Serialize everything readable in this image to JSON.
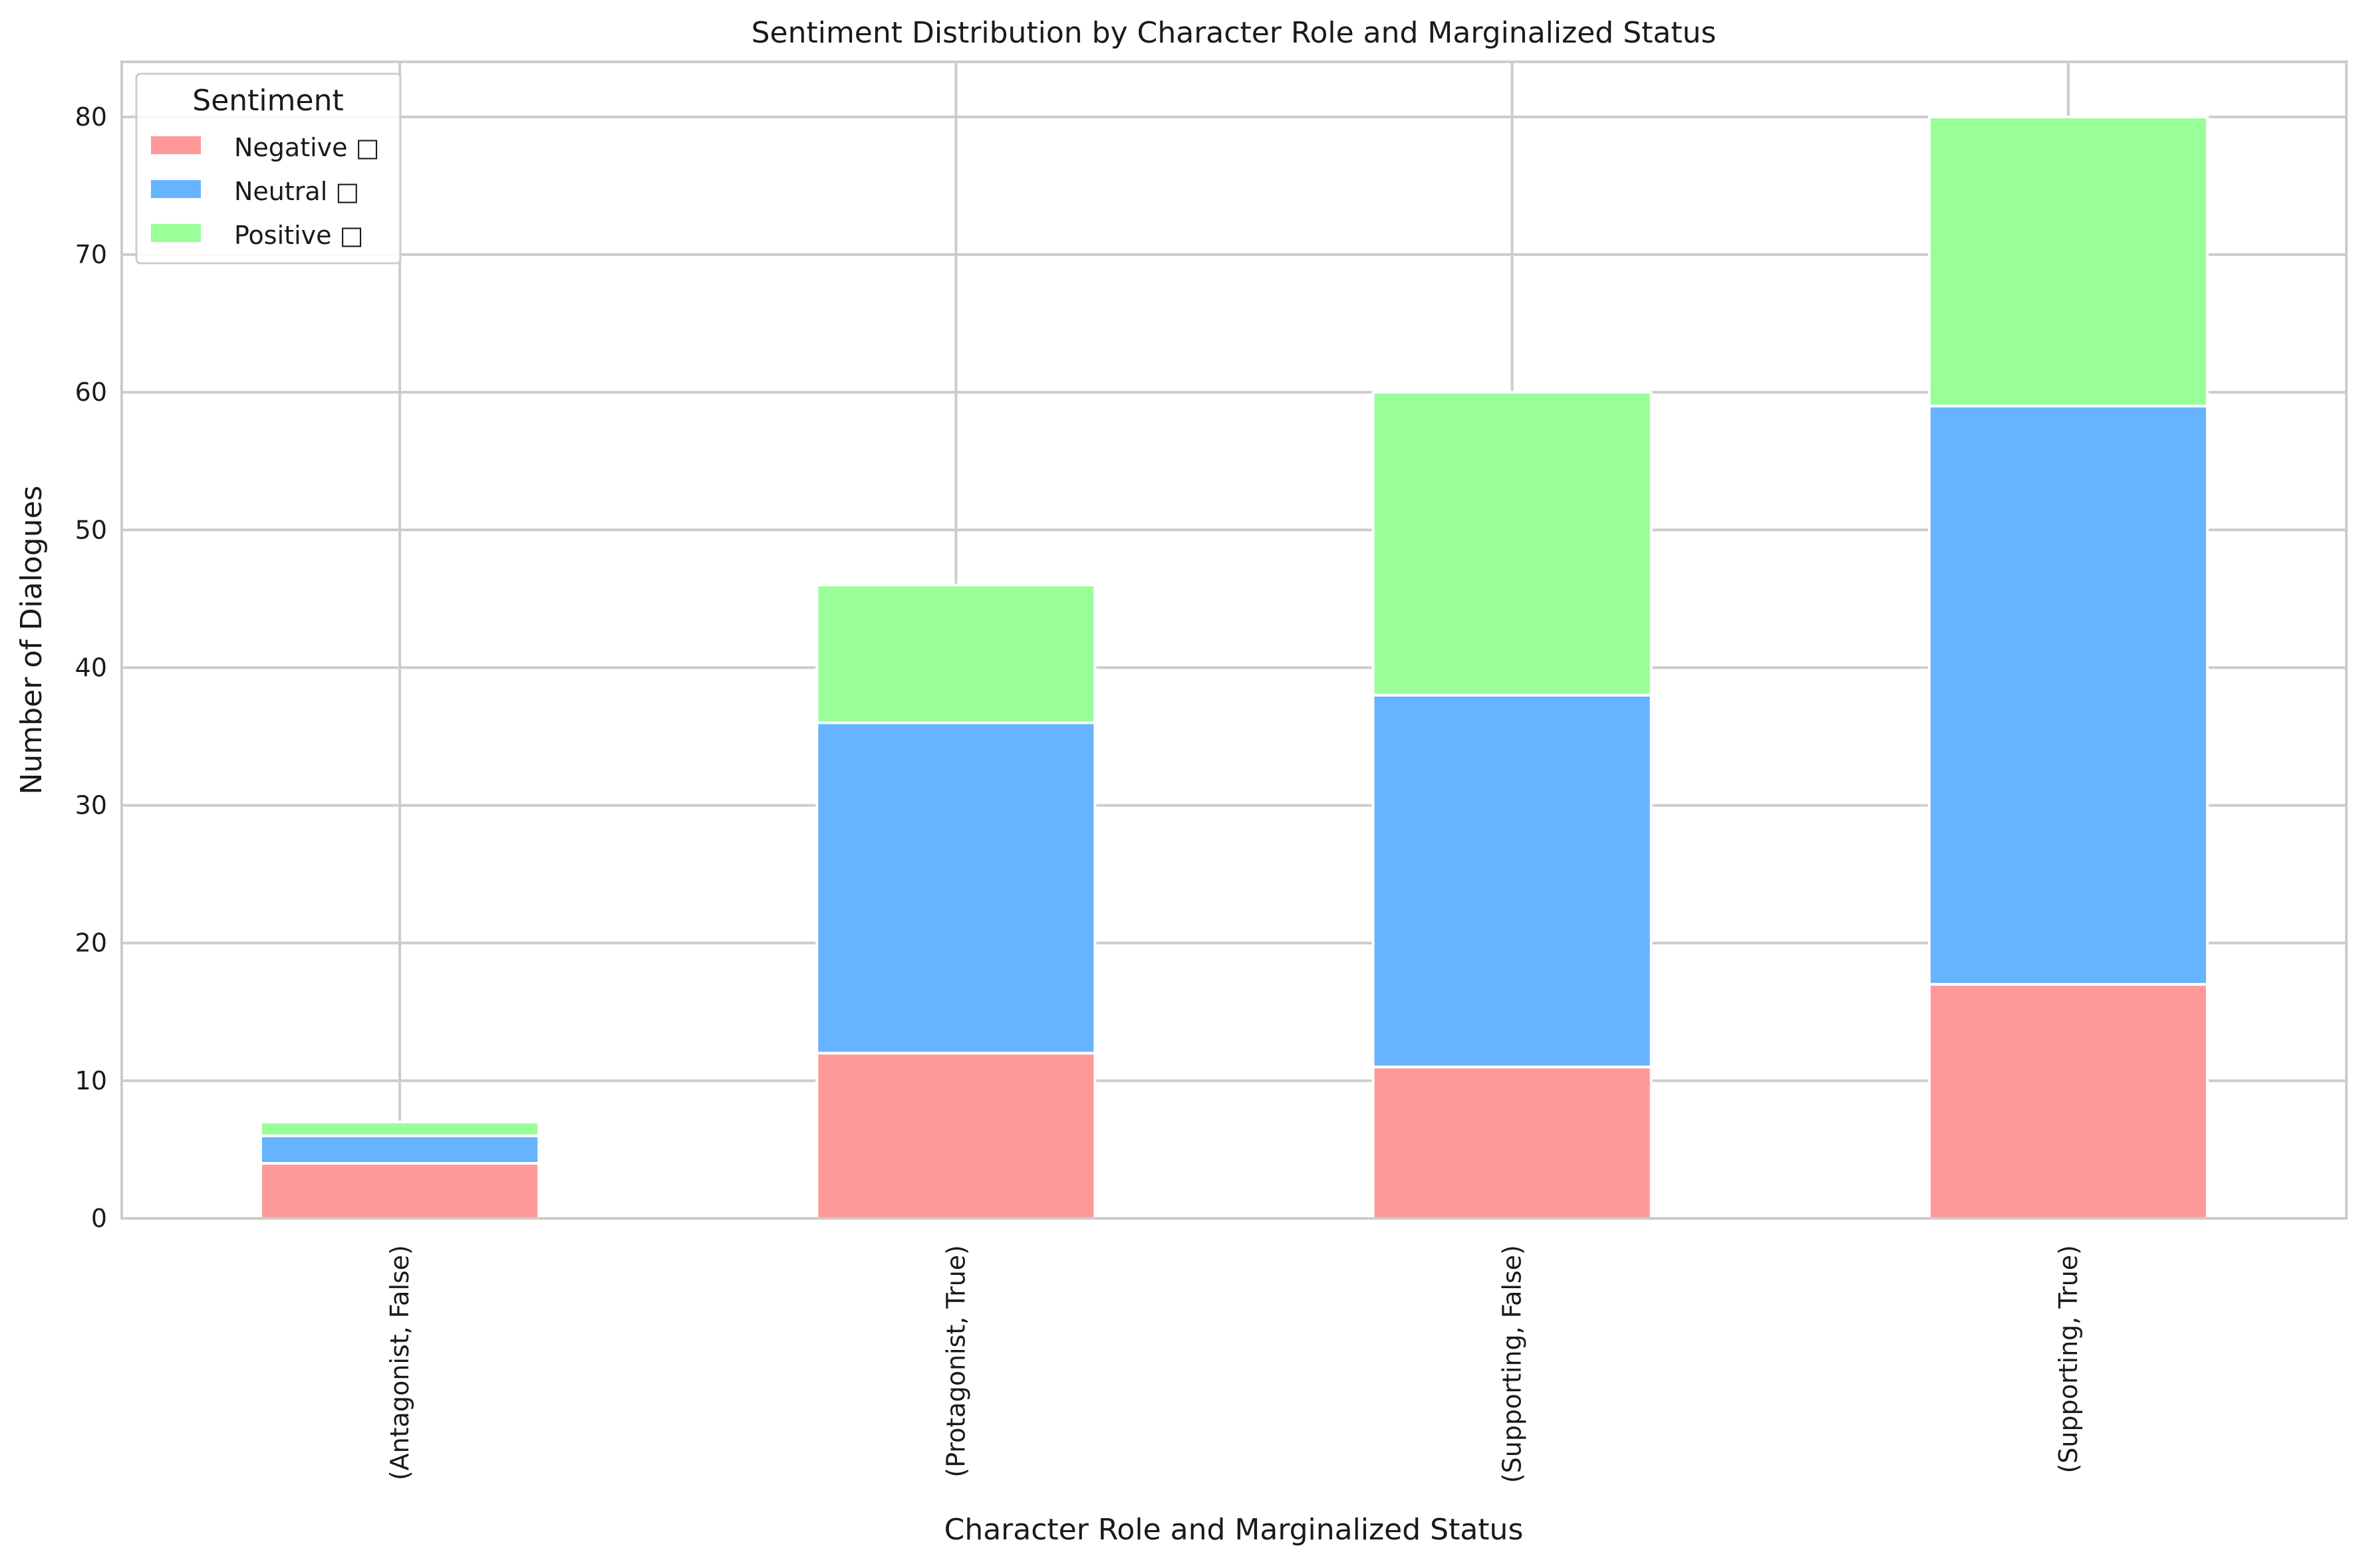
{
  "chart_data": {
    "type": "bar",
    "stacked": true,
    "title": "Sentiment Distribution by Character Role and Marginalized Status",
    "xlabel": "Character Role and Marginalized Status",
    "ylabel": "Number of Dialogues",
    "categories": [
      "(Antagonist, False)",
      "(Protagonist, True)",
      "(Supporting, False)",
      "(Supporting, True)"
    ],
    "series": [
      {
        "name": "Negative □",
        "color": "#ff9999",
        "values": [
          4,
          12,
          11,
          17
        ]
      },
      {
        "name": "Neutral □",
        "color": "#66b3ff",
        "values": [
          2,
          24,
          27,
          42
        ]
      },
      {
        "name": "Positive □",
        "color": "#99ff99",
        "values": [
          1,
          10,
          22,
          21
        ]
      }
    ],
    "ylim": [
      0,
      84
    ],
    "yticks": [
      0,
      10,
      20,
      30,
      40,
      50,
      60,
      70,
      80
    ],
    "grid": true,
    "legend": {
      "title": "Sentiment",
      "placement": "top-left"
    }
  }
}
